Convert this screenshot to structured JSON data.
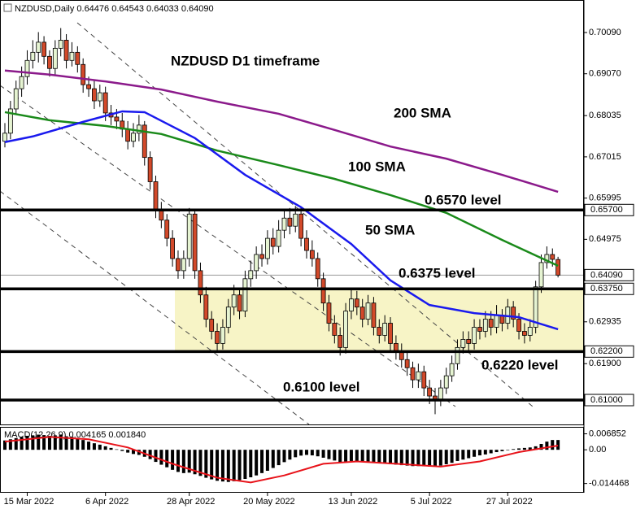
{
  "chart_data": [
    {
      "type": "candlestick",
      "title": "NZDUSD,Daily 0.64476 0.64543 0.64033 0.64090",
      "annotation": "NZDUSD D1 timeframe",
      "categories": [
        null,
        null,
        null,
        null,
        "15 Mar 2022",
        null,
        null,
        null,
        null,
        null,
        null,
        null,
        null,
        null,
        null,
        null,
        null,
        null,
        "6 Apr 2022",
        null,
        null,
        null,
        null,
        null,
        null,
        null,
        null,
        null,
        null,
        null,
        null,
        null,
        null,
        "28 Apr 2022",
        null,
        null,
        null,
        null,
        null,
        null,
        null,
        null,
        null,
        null,
        null,
        null,
        null,
        "20 May 2022",
        null,
        null,
        null,
        null,
        null,
        null,
        null,
        null,
        null,
        null,
        null,
        null,
        null,
        null,
        "13 Jun 2022",
        null,
        null,
        null,
        null,
        null,
        null,
        null,
        null,
        null,
        null,
        null,
        null,
        null,
        "5 Jul 2022",
        null,
        null,
        null,
        null,
        null,
        null,
        null,
        null,
        null,
        null,
        null,
        null,
        null,
        "27 Jul 2022",
        null,
        null,
        null,
        null,
        null,
        null,
        null,
        null,
        null
      ],
      "open": [
        0.674,
        0.676,
        0.682,
        0.687,
        0.69,
        0.694,
        0.696,
        0.6985,
        0.695,
        0.692,
        0.697,
        0.699,
        0.694,
        0.696,
        0.693,
        0.688,
        0.687,
        0.684,
        0.686,
        0.681,
        0.68,
        0.679,
        0.677,
        0.674,
        0.676,
        0.678,
        0.67,
        0.664,
        0.657,
        0.6545,
        0.65,
        0.645,
        0.642,
        0.645,
        0.656,
        0.642,
        0.636,
        0.63,
        0.627,
        0.624,
        0.628,
        0.633,
        0.636,
        0.632,
        0.64,
        0.642,
        0.646,
        0.645,
        0.65,
        0.648,
        0.652,
        0.655,
        0.653,
        0.656,
        0.65,
        0.647,
        0.645,
        0.64,
        0.634,
        0.629,
        0.626,
        0.623,
        0.632,
        0.635,
        0.633,
        0.63,
        0.634,
        0.628,
        0.626,
        0.629,
        0.624,
        0.622,
        0.62,
        0.618,
        0.615,
        0.617,
        0.613,
        0.611,
        0.61,
        0.613,
        0.616,
        0.619,
        0.623,
        0.625,
        0.624,
        0.628,
        0.627,
        0.63,
        0.628,
        0.631,
        0.629,
        0.633,
        0.63,
        0.627,
        0.626,
        0.628,
        0.638,
        0.644,
        0.646,
        0.64476
      ],
      "high": [
        0.6785,
        0.684,
        0.689,
        0.6925,
        0.6965,
        0.699,
        0.701,
        0.7,
        0.6965,
        0.699,
        0.702,
        0.7005,
        0.6985,
        0.6975,
        0.6945,
        0.69,
        0.689,
        0.688,
        0.6875,
        0.683,
        0.682,
        0.681,
        0.679,
        0.6785,
        0.6805,
        0.679,
        0.6715,
        0.6655,
        0.659,
        0.656,
        0.652,
        0.647,
        0.647,
        0.6575,
        0.657,
        0.644,
        0.638,
        0.632,
        0.629,
        0.63,
        0.635,
        0.6385,
        0.6375,
        0.642,
        0.6445,
        0.648,
        0.6485,
        0.652,
        0.6525,
        0.6545,
        0.657,
        0.6575,
        0.658,
        0.6575,
        0.652,
        0.6495,
        0.6465,
        0.6415,
        0.636,
        0.631,
        0.628,
        0.634,
        0.6375,
        0.637,
        0.635,
        0.636,
        0.6355,
        0.63,
        0.631,
        0.6305,
        0.626,
        0.624,
        0.622,
        0.6195,
        0.619,
        0.6185,
        0.615,
        0.613,
        0.615,
        0.618,
        0.621,
        0.625,
        0.627,
        0.627,
        0.63,
        0.63,
        0.632,
        0.632,
        0.6335,
        0.6325,
        0.635,
        0.6345,
        0.6315,
        0.629,
        0.63,
        0.6395,
        0.646,
        0.648,
        0.6475,
        0.64543
      ],
      "low": [
        0.6725,
        0.6745,
        0.6805,
        0.685,
        0.688,
        0.692,
        0.6935,
        0.693,
        0.69,
        0.6905,
        0.695,
        0.692,
        0.6925,
        0.691,
        0.686,
        0.685,
        0.682,
        0.6825,
        0.679,
        0.678,
        0.677,
        0.675,
        0.672,
        0.6725,
        0.674,
        0.668,
        0.662,
        0.655,
        0.6525,
        0.648,
        0.643,
        0.64,
        0.64,
        0.643,
        0.64,
        0.634,
        0.628,
        0.625,
        0.622,
        0.6225,
        0.6265,
        0.631,
        0.63,
        0.6305,
        0.638,
        0.64,
        0.643,
        0.6435,
        0.646,
        0.6465,
        0.65,
        0.651,
        0.6515,
        0.648,
        0.645,
        0.643,
        0.638,
        0.632,
        0.627,
        0.624,
        0.621,
        0.6215,
        0.63,
        0.631,
        0.628,
        0.6285,
        0.626,
        0.624,
        0.6245,
        0.622,
        0.62,
        0.618,
        0.616,
        0.613,
        0.613,
        0.611,
        0.609,
        0.6065,
        0.6085,
        0.6115,
        0.6145,
        0.6175,
        0.6215,
        0.622,
        0.6225,
        0.625,
        0.6255,
        0.626,
        0.6265,
        0.627,
        0.6275,
        0.628,
        0.625,
        0.624,
        0.6245,
        0.6265,
        0.6365,
        0.6425,
        0.643,
        0.64033
      ],
      "close": [
        0.676,
        0.682,
        0.687,
        0.69,
        0.694,
        0.696,
        0.6985,
        0.695,
        0.692,
        0.697,
        0.699,
        0.694,
        0.696,
        0.693,
        0.688,
        0.687,
        0.684,
        0.686,
        0.681,
        0.68,
        0.679,
        0.677,
        0.674,
        0.676,
        0.678,
        0.67,
        0.664,
        0.657,
        0.6545,
        0.65,
        0.645,
        0.642,
        0.645,
        0.656,
        0.642,
        0.636,
        0.63,
        0.627,
        0.624,
        0.628,
        0.633,
        0.636,
        0.632,
        0.64,
        0.642,
        0.646,
        0.645,
        0.65,
        0.648,
        0.652,
        0.655,
        0.653,
        0.656,
        0.65,
        0.647,
        0.645,
        0.64,
        0.634,
        0.629,
        0.626,
        0.623,
        0.632,
        0.635,
        0.633,
        0.63,
        0.634,
        0.628,
        0.626,
        0.629,
        0.624,
        0.622,
        0.62,
        0.618,
        0.615,
        0.617,
        0.613,
        0.611,
        0.61,
        0.613,
        0.616,
        0.619,
        0.623,
        0.625,
        0.624,
        0.628,
        0.627,
        0.63,
        0.628,
        0.631,
        0.629,
        0.633,
        0.63,
        0.627,
        0.626,
        0.628,
        0.638,
        0.644,
        0.646,
        0.6448,
        0.6409
      ],
      "up_color": "#e6f4d2",
      "down_color": "#d2492a",
      "ylim": [
        0.60397,
        0.70894
      ],
      "yticks": [
        {
          "value": 0.7009,
          "label": "0.70090"
        },
        {
          "value": 0.6907,
          "label": "0.69070"
        },
        0.68035,
        0.67015,
        0.65995,
        0.64975,
        0.62935,
        {
          "value": 0.619,
          "label": "0.61900"
        }
      ],
      "overlays": [
        {
          "name": "200 SMA",
          "color": "#8b1a8b",
          "x": [
            0,
            8,
            18,
            28,
            38,
            49,
            59,
            69,
            79,
            89,
            99
          ],
          "values": [
            0.6915,
            0.6905,
            0.6888,
            0.6868,
            0.6838,
            0.6808,
            0.6768,
            0.6727,
            0.6697,
            0.6657,
            0.6615
          ]
        },
        {
          "name": "100 SMA",
          "color": "#1a8a1a",
          "x": [
            0,
            8,
            18,
            28,
            38,
            49,
            59,
            69,
            79,
            89,
            99
          ],
          "values": [
            0.6812,
            0.6792,
            0.6778,
            0.6758,
            0.6717,
            0.6681,
            0.6647,
            0.6607,
            0.6563,
            0.6496,
            0.6432
          ]
        },
        {
          "name": "50 SMA",
          "color": "#1a1aee",
          "x": [
            0,
            5,
            14,
            21,
            25,
            34,
            43,
            53,
            62,
            69,
            76,
            84,
            92,
            99
          ],
          "values": [
            0.6738,
            0.6752,
            0.6788,
            0.6814,
            0.6812,
            0.6748,
            0.6657,
            0.6577,
            0.6486,
            0.6396,
            0.6335,
            0.6315,
            0.6305,
            0.6275
          ]
        }
      ],
      "levels": [
        {
          "value": 0.657,
          "label": "0.65700",
          "text": "0.6570 level"
        },
        {
          "value": 0.6375,
          "label": "0.63750",
          "text": "0.6375 level"
        },
        {
          "value": 0.622,
          "label": "0.62200",
          "text": "0.6220 level"
        },
        {
          "value": 0.61,
          "label": "0.61000",
          "text": "0.6100 level"
        }
      ],
      "last_price": {
        "value": 0.6409,
        "label": "0.64090"
      },
      "zone_color": "#f7f4c6"
    },
    {
      "type": "macd",
      "title": "MACD(12,26,9) 0.004165 0.001840",
      "values": [
        0.004,
        0.0045,
        0.005,
        0.0055,
        0.006,
        0.0062,
        0.0065,
        0.0063,
        0.006,
        0.0062,
        0.0064,
        0.0058,
        0.0055,
        0.005,
        0.0042,
        0.0035,
        0.0028,
        0.0022,
        0.0015,
        0.0008,
        0.0002,
        -0.0005,
        -0.0012,
        -0.0018,
        -0.0022,
        -0.003,
        -0.004,
        -0.0052,
        -0.0064,
        -0.0075,
        -0.0086,
        -0.0095,
        -0.01,
        -0.0098,
        -0.0105,
        -0.0112,
        -0.012,
        -0.0127,
        -0.0133,
        -0.0136,
        -0.0138,
        -0.0135,
        -0.013,
        -0.0125,
        -0.0118,
        -0.011,
        -0.01,
        -0.009,
        -0.0078,
        -0.0066,
        -0.0053,
        -0.0042,
        -0.0032,
        -0.0025,
        -0.0022,
        -0.0024,
        -0.0028,
        -0.0034,
        -0.004,
        -0.0046,
        -0.0052,
        -0.005,
        -0.0048,
        -0.0049,
        -0.0052,
        -0.0052,
        -0.0055,
        -0.0058,
        -0.0058,
        -0.0062,
        -0.0064,
        -0.0066,
        -0.0068,
        -0.007,
        -0.007,
        -0.0071,
        -0.0072,
        -0.0072,
        -0.0068,
        -0.0062,
        -0.0056,
        -0.0048,
        -0.0042,
        -0.0036,
        -0.003,
        -0.0024,
        -0.002,
        -0.0015,
        -0.001,
        -0.0006,
        -0.0002,
        0.0003,
        0.0006,
        0.0008,
        0.001,
        0.0015,
        0.0025,
        0.0035,
        0.0042,
        0.0042
      ],
      "color": "#000000",
      "signal": {
        "color": "#e8131a",
        "x": [
          0,
          8,
          15,
          22,
          30,
          38,
          44,
          50,
          57,
          63,
          70,
          78,
          85,
          92,
          99
        ],
        "values": [
          0.0035,
          0.0055,
          0.0045,
          0.001,
          -0.006,
          -0.012,
          -0.014,
          -0.011,
          -0.006,
          -0.005,
          -0.006,
          -0.0072,
          -0.005,
          -0.001,
          0.0018
        ]
      },
      "ylim": [
        -0.01808,
        0.00948
      ],
      "yticks": [
        0.006852,
        {
          "value": 0,
          "label": "0.00"
        },
        -0.014468
      ]
    }
  ]
}
